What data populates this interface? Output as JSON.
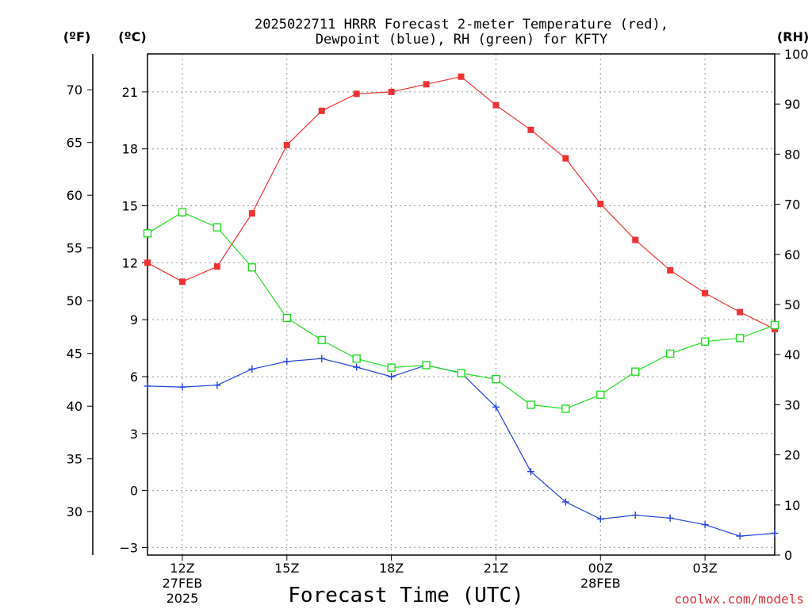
{
  "chart_data": {
    "type": "line",
    "title_lines": [
      "2025022711 HRRR Forecast 2-meter Temperature (red),",
      "Dewpoint (blue), RH (green) for KFTY"
    ],
    "xlabel": "Forecast Time (UTC)",
    "credit": "coolwx.com/models",
    "unit_labels": {
      "f": "(ºF)",
      "c": "(ºC)",
      "rh": "(RH)"
    },
    "grid": true,
    "x_range_hours": [
      11,
      29
    ],
    "c_range": [
      -3.4,
      23.0
    ],
    "rh_range": [
      0,
      100
    ],
    "x_ticks": [
      {
        "hour": 12,
        "lines": [
          "12Z",
          "27FEB",
          "2025"
        ]
      },
      {
        "hour": 15,
        "lines": [
          "15Z"
        ]
      },
      {
        "hour": 18,
        "lines": [
          "18Z"
        ]
      },
      {
        "hour": 21,
        "lines": [
          "21Z"
        ]
      },
      {
        "hour": 24,
        "lines": [
          "00Z",
          "28FEB"
        ]
      },
      {
        "hour": 27,
        "lines": [
          "03Z"
        ]
      }
    ],
    "c_ticks": [
      "-3",
      "0",
      "3",
      "6",
      "9",
      "12",
      "15",
      "18",
      "21"
    ],
    "f_ticks": [
      "30",
      "35",
      "40",
      "45",
      "50",
      "55",
      "60",
      "65",
      "70"
    ],
    "rh_ticks": [
      "0",
      "10",
      "20",
      "30",
      "40",
      "50",
      "60",
      "70",
      "80",
      "90",
      "100"
    ],
    "hours": [
      11,
      12,
      13,
      14,
      15,
      16,
      17,
      18,
      19,
      20,
      21,
      22,
      23,
      24,
      25,
      26,
      27,
      28,
      29
    ],
    "series": [
      {
        "name": "Temperature",
        "axis": "c",
        "color": "#ee3333",
        "marker": "filled-square",
        "values": [
          12.0,
          11.0,
          11.8,
          14.6,
          18.2,
          20.0,
          20.9,
          21.0,
          21.4,
          21.8,
          20.3,
          19.0,
          17.5,
          15.1,
          13.2,
          11.6,
          10.4,
          9.4,
          8.5
        ]
      },
      {
        "name": "Dewpoint",
        "axis": "c",
        "color": "#2244dd",
        "marker": "plus",
        "values": [
          5.5,
          5.45,
          5.55,
          6.4,
          6.8,
          6.95,
          6.5,
          6.0,
          6.6,
          6.2,
          4.4,
          1.0,
          -0.6,
          -1.5,
          -1.3,
          -1.45,
          -1.8,
          -2.4,
          -2.25
        ]
      },
      {
        "name": "RH",
        "axis": "rh",
        "color": "#22dd22",
        "marker": "open-square",
        "values": [
          64.2,
          68.4,
          65.4,
          57.4,
          47.3,
          42.9,
          39.2,
          37.4,
          37.9,
          36.3,
          35.1,
          30.0,
          29.2,
          32.0,
          36.6,
          40.2,
          42.6,
          43.3,
          45.9
        ]
      }
    ]
  }
}
